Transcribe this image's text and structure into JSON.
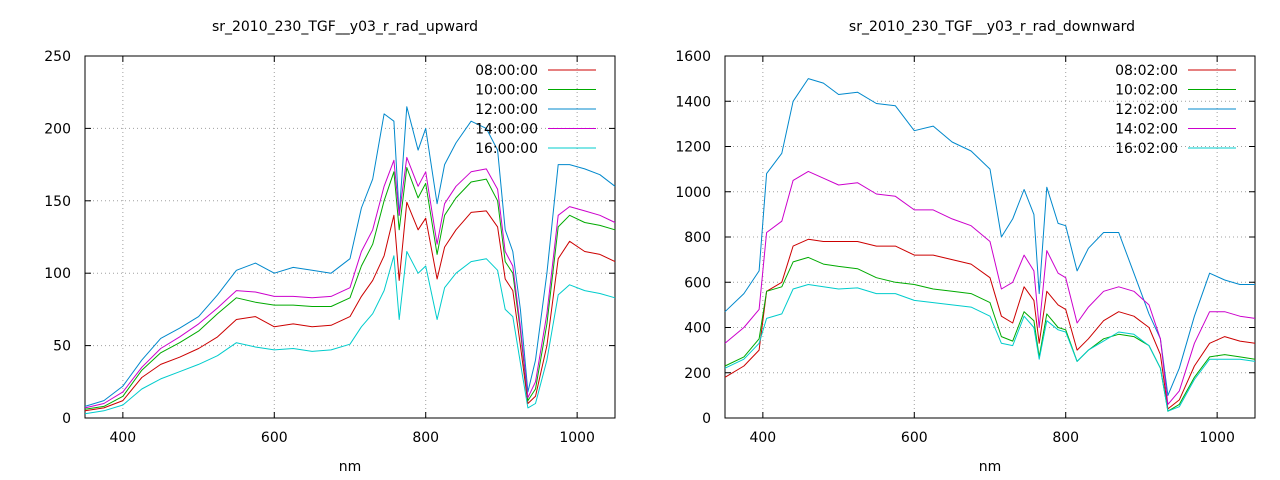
{
  "chart_data": [
    {
      "type": "line",
      "title": "sr_2010_230_TGF__y03_r_rad_upward",
      "xlabel": "nm",
      "ylabel": "",
      "xlim": [
        350,
        1050
      ],
      "ylim": [
        0,
        250
      ],
      "xticks": [
        400,
        600,
        800,
        1000
      ],
      "yticks": [
        0,
        50,
        100,
        150,
        200,
        250
      ],
      "grid": true,
      "legend": "top-right",
      "x": [
        350,
        375,
        400,
        425,
        450,
        475,
        500,
        525,
        550,
        575,
        600,
        625,
        650,
        675,
        700,
        715,
        730,
        745,
        758,
        765,
        775,
        790,
        800,
        815,
        825,
        840,
        860,
        880,
        895,
        905,
        915,
        925,
        935,
        945,
        960,
        975,
        990,
        1010,
        1030,
        1050
      ],
      "series": [
        {
          "name": "08:00:00",
          "color": "#cc0000",
          "values": [
            5,
            7,
            12,
            28,
            37,
            42,
            48,
            56,
            68,
            70,
            63,
            65,
            63,
            64,
            70,
            84,
            95,
            112,
            140,
            95,
            149,
            130,
            138,
            96,
            118,
            130,
            142,
            143,
            132,
            96,
            88,
            50,
            10,
            15,
            50,
            110,
            122,
            115,
            113,
            108
          ]
        },
        {
          "name": "10:00:00",
          "color": "#00aa00",
          "values": [
            6,
            8,
            15,
            33,
            45,
            52,
            60,
            72,
            83,
            80,
            78,
            78,
            77,
            77,
            83,
            105,
            120,
            150,
            170,
            130,
            173,
            152,
            162,
            113,
            140,
            152,
            163,
            165,
            150,
            108,
            100,
            60,
            12,
            20,
            65,
            132,
            140,
            135,
            133,
            130
          ]
        },
        {
          "name": "12:00:00",
          "color": "#0088cc",
          "values": [
            8,
            12,
            22,
            40,
            55,
            62,
            70,
            85,
            102,
            107,
            100,
            104,
            102,
            100,
            110,
            145,
            165,
            210,
            205,
            140,
            215,
            185,
            200,
            148,
            175,
            190,
            205,
            200,
            185,
            130,
            115,
            75,
            18,
            40,
            100,
            175,
            175,
            172,
            168,
            160
          ]
        },
        {
          "name": "14:00:00",
          "color": "#cc00cc",
          "values": [
            7,
            10,
            18,
            35,
            48,
            56,
            65,
            76,
            88,
            87,
            84,
            84,
            83,
            84,
            90,
            115,
            130,
            160,
            178,
            140,
            180,
            160,
            170,
            120,
            148,
            160,
            170,
            172,
            158,
            115,
            105,
            63,
            14,
            25,
            72,
            140,
            146,
            143,
            140,
            135
          ]
        },
        {
          "name": "16:00:00",
          "color": "#00cccc",
          "values": [
            3,
            5,
            9,
            20,
            27,
            32,
            37,
            43,
            52,
            49,
            47,
            48,
            46,
            47,
            51,
            63,
            72,
            88,
            112,
            68,
            115,
            100,
            105,
            68,
            90,
            100,
            108,
            110,
            102,
            75,
            70,
            38,
            7,
            10,
            40,
            85,
            92,
            88,
            86,
            83
          ]
        }
      ]
    },
    {
      "type": "line",
      "title": "sr_2010_230_TGF__y03_r_rad_downward",
      "xlabel": "nm",
      "ylabel": "",
      "xlim": [
        350,
        1050
      ],
      "ylim": [
        0,
        1600
      ],
      "xticks": [
        400,
        600,
        800,
        1000
      ],
      "yticks": [
        0,
        200,
        400,
        600,
        800,
        1000,
        1200,
        1400,
        1600
      ],
      "grid": true,
      "legend": "top-right",
      "x": [
        350,
        375,
        395,
        405,
        425,
        440,
        460,
        480,
        500,
        525,
        550,
        575,
        600,
        625,
        650,
        675,
        700,
        715,
        730,
        745,
        758,
        765,
        775,
        790,
        800,
        815,
        830,
        850,
        870,
        890,
        910,
        925,
        935,
        950,
        970,
        990,
        1010,
        1030,
        1050
      ],
      "series": [
        {
          "name": "08:02:00",
          "color": "#cc0000",
          "values": [
            180,
            230,
            300,
            560,
            600,
            760,
            790,
            780,
            780,
            780,
            760,
            760,
            720,
            720,
            700,
            680,
            620,
            450,
            420,
            580,
            520,
            330,
            560,
            500,
            480,
            300,
            350,
            430,
            470,
            450,
            400,
            280,
            40,
            80,
            230,
            330,
            360,
            340,
            330
          ]
        },
        {
          "name": "10:02:00",
          "color": "#00aa00",
          "values": [
            230,
            270,
            350,
            560,
            580,
            690,
            710,
            680,
            670,
            660,
            620,
            600,
            590,
            570,
            560,
            550,
            510,
            360,
            340,
            470,
            430,
            270,
            460,
            400,
            390,
            250,
            300,
            350,
            370,
            360,
            320,
            220,
            30,
            60,
            180,
            270,
            280,
            270,
            260
          ]
        },
        {
          "name": "12:02:00",
          "color": "#0088cc",
          "values": [
            470,
            550,
            650,
            1080,
            1170,
            1400,
            1500,
            1480,
            1430,
            1440,
            1390,
            1380,
            1270,
            1290,
            1220,
            1180,
            1100,
            800,
            880,
            1010,
            900,
            550,
            1020,
            860,
            850,
            650,
            750,
            820,
            820,
            640,
            460,
            350,
            100,
            220,
            450,
            640,
            610,
            590,
            590
          ]
        },
        {
          "name": "14:02:00",
          "color": "#cc00cc",
          "values": [
            330,
            400,
            480,
            820,
            870,
            1050,
            1090,
            1060,
            1030,
            1040,
            990,
            980,
            920,
            920,
            880,
            850,
            780,
            570,
            600,
            720,
            650,
            400,
            740,
            640,
            620,
            420,
            490,
            560,
            580,
            560,
            500,
            350,
            60,
            120,
            330,
            470,
            470,
            450,
            440
          ]
        },
        {
          "name": "16:02:00",
          "color": "#00cccc",
          "values": [
            220,
            260,
            330,
            440,
            460,
            570,
            590,
            580,
            570,
            575,
            550,
            550,
            520,
            510,
            500,
            490,
            450,
            330,
            320,
            450,
            400,
            260,
            430,
            390,
            380,
            250,
            300,
            340,
            380,
            370,
            320,
            220,
            30,
            50,
            170,
            260,
            260,
            260,
            250
          ]
        }
      ]
    }
  ]
}
